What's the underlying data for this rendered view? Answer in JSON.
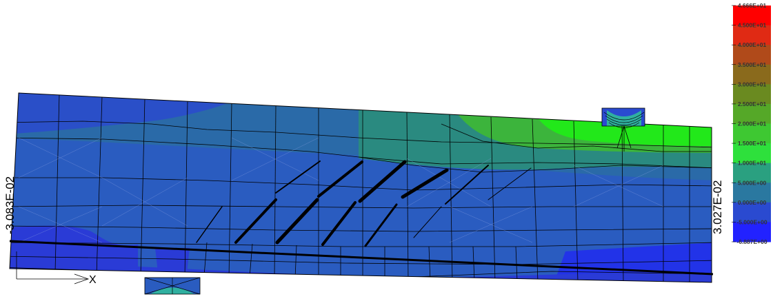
{
  "plot": {
    "left_edge_label": "-3.083E-02",
    "right_edge_label": "3.027E-02",
    "axis_x_label": "X"
  },
  "legend": {
    "colors": [
      "#ff0000",
      "#e02a14",
      "#b04a1a",
      "#8a6a1c",
      "#6a8a20",
      "#55a828",
      "#3ec832",
      "#2ee03c",
      "#2aa080",
      "#2a78a0",
      "#2a4ad0",
      "#2222ff"
    ],
    "labels": [
      "4.666E+01",
      "4.500E+01",
      "4.000E+01",
      "3.500E+01",
      "3.000E+01",
      "2.500E+01",
      "2.000E+01",
      "1.500E+01",
      "1.000E+01",
      "5.000E+00",
      "0.000E+00",
      "-5.000E+00",
      "-6.887E+00"
    ]
  },
  "colors": {
    "deep_blue": "#2a3bd6",
    "mid_blue": "#2a5cc0",
    "steel_blue": "#2a6aa8",
    "teal": "#2a8a80",
    "green": "#3cc83c",
    "bright_green": "#22ff00"
  }
}
